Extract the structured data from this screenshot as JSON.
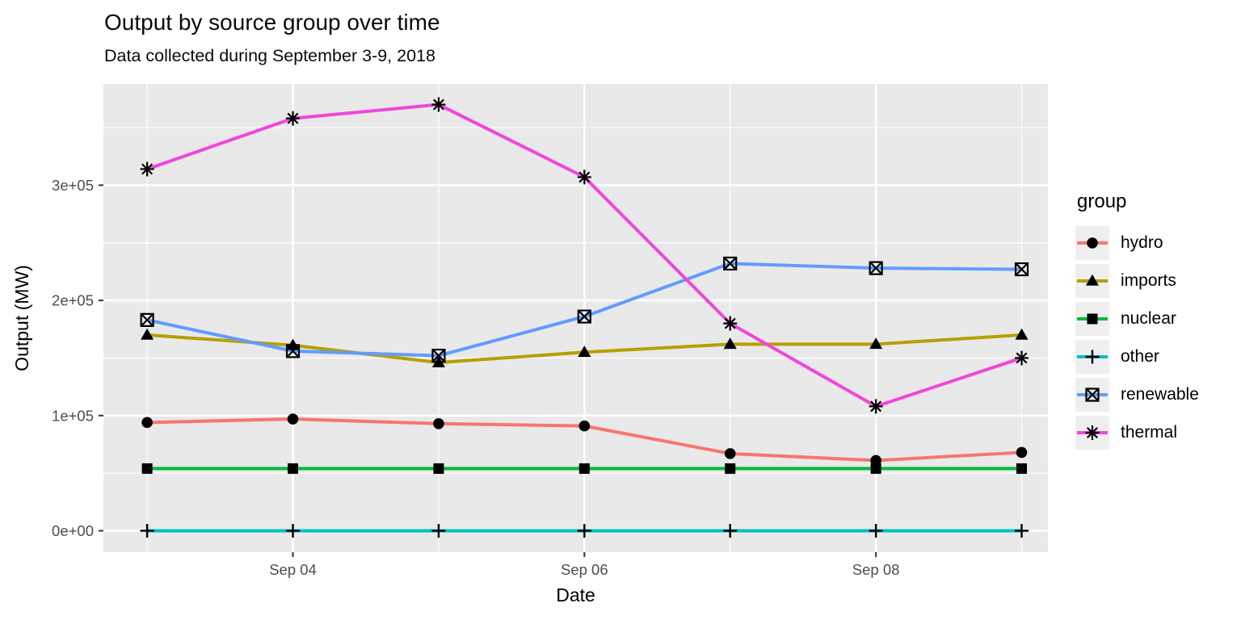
{
  "title": "Output by source group over time",
  "subtitle": "Data collected during September 3-9, 2018",
  "chart_data": {
    "type": "line",
    "xlabel": "Date",
    "ylabel": "Output (MW)",
    "legend_title": "group",
    "legend_position": "right",
    "grid": true,
    "x_days": [
      3,
      4,
      5,
      6,
      7,
      8,
      9
    ],
    "x_major_ticks": [
      4,
      6,
      8
    ],
    "x_tick_labels": [
      "Sep 04",
      "Sep 06",
      "Sep 08"
    ],
    "x_minor_gridlines": [
      3,
      5,
      7,
      9
    ],
    "xlim": [
      2.7,
      9.18
    ],
    "y_major_ticks": [
      0,
      100000,
      200000,
      300000
    ],
    "y_tick_labels": [
      "0e+00",
      "1e+05",
      "2e+05",
      "3e+05"
    ],
    "y_minor_gridlines": [
      50000,
      150000,
      250000,
      350000
    ],
    "ylim": [
      -18600,
      387900
    ],
    "series": [
      {
        "name": "hydro",
        "color": "#F8766D",
        "marker": "circle",
        "values": [
          94000,
          97000,
          93000,
          91000,
          67000,
          61000,
          68000
        ]
      },
      {
        "name": "imports",
        "color": "#B79F00",
        "marker": "triangle",
        "values": [
          170000,
          161000,
          146000,
          155000,
          162000,
          162000,
          170000
        ]
      },
      {
        "name": "nuclear",
        "color": "#00BA38",
        "marker": "square",
        "values": [
          54000,
          54000,
          54000,
          54000,
          54000,
          54000,
          54000
        ]
      },
      {
        "name": "other",
        "color": "#00BFC4",
        "marker": "plus",
        "values": [
          0,
          0,
          0,
          0,
          0,
          0,
          0
        ]
      },
      {
        "name": "renewable",
        "color": "#619CFF",
        "marker": "square-x",
        "values": [
          183000,
          156000,
          152000,
          186000,
          232000,
          228000,
          227000
        ]
      },
      {
        "name": "thermal",
        "color": "#F046DC",
        "marker": "asterisk",
        "values": [
          314000,
          358000,
          370000,
          307000,
          180000,
          108000,
          150000
        ]
      }
    ]
  },
  "style": {
    "panel_bg": "#E9E9E9",
    "grid_color": "#FFFFFF",
    "tick_color": "#333333",
    "axis_text_color": "#4D4D4D",
    "marker_color": "#000000"
  }
}
